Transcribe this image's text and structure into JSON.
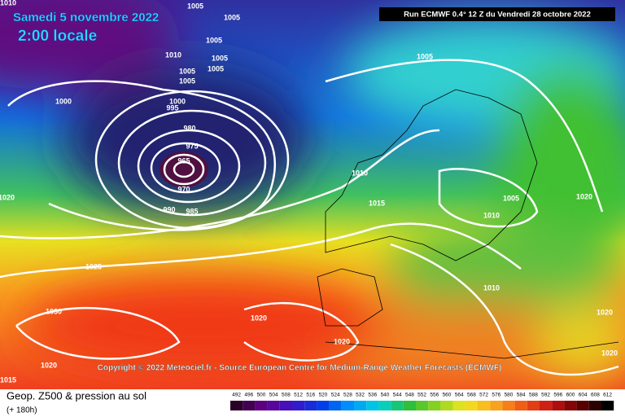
{
  "header": {
    "date": "Samedi 5 novembre 2022",
    "time": "2:00 locale",
    "run": "Run ECMWF 0.4° 12 Z du Vendredi 28 octobre 2022"
  },
  "copyright": "Copyright © 2022 Meteociel.fr - Source European Centre for Medium-Range Weather Forecasts (ECMWF)",
  "footer": {
    "title": "Geop. Z500 & pression au sol",
    "subtitle": "(+ 180h)"
  },
  "isobar_labels": [
    "1010",
    "1005",
    "1005",
    "1005",
    "1010",
    "1005",
    "1005",
    "1005",
    "1005",
    "1000",
    "1000",
    "995",
    "980",
    "975",
    "965",
    "970",
    "990",
    "985",
    "1020",
    "1010",
    "1015",
    "1005",
    "1020",
    "1010",
    "1025",
    "1010",
    "1030",
    "1020",
    "1020",
    "1020",
    "1020",
    "1020",
    "1015",
    "1005"
  ],
  "legend_ticks": [
    492,
    496,
    500,
    504,
    508,
    512,
    516,
    520,
    524,
    528,
    532,
    536,
    540,
    544,
    548,
    552,
    556,
    560,
    564,
    568,
    572,
    576,
    580,
    584,
    588,
    592,
    596,
    600,
    604,
    608,
    612
  ]
}
